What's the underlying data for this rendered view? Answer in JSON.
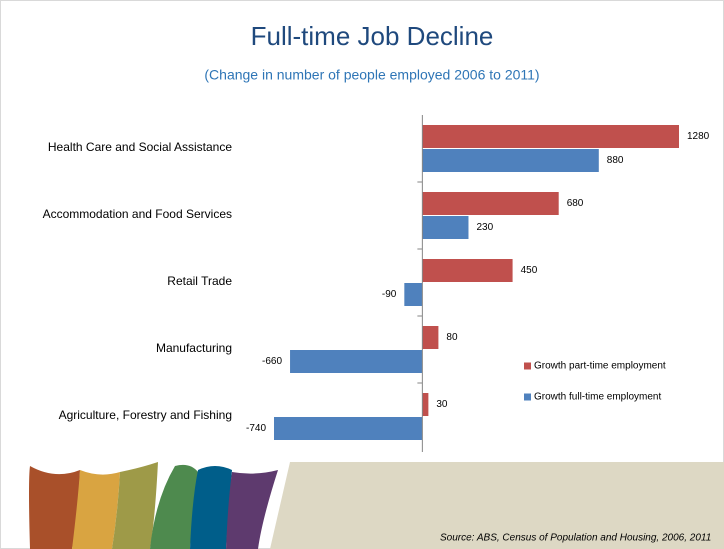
{
  "chart_data": {
    "type": "hbar",
    "title": "Full-time Job Decline",
    "subtitle": "(Change in number of people employed 2006 to 2011)",
    "categories": [
      "Health Care and Social Assistance",
      "Accommodation and Food Services",
      "Retail Trade",
      "Manufacturing",
      "Agriculture, Forestry and Fishing"
    ],
    "series": [
      {
        "name": "Growth part-time employment",
        "color": "#c0504d",
        "values": [
          1280,
          680,
          450,
          80,
          30
        ]
      },
      {
        "name": "Growth full-time employment",
        "color": "#4f81bd",
        "values": [
          880,
          230,
          -90,
          -660,
          -740
        ]
      }
    ],
    "legend": "right",
    "source": "Source: ABS, Census of Population and Housing, 2006, 2011"
  }
}
